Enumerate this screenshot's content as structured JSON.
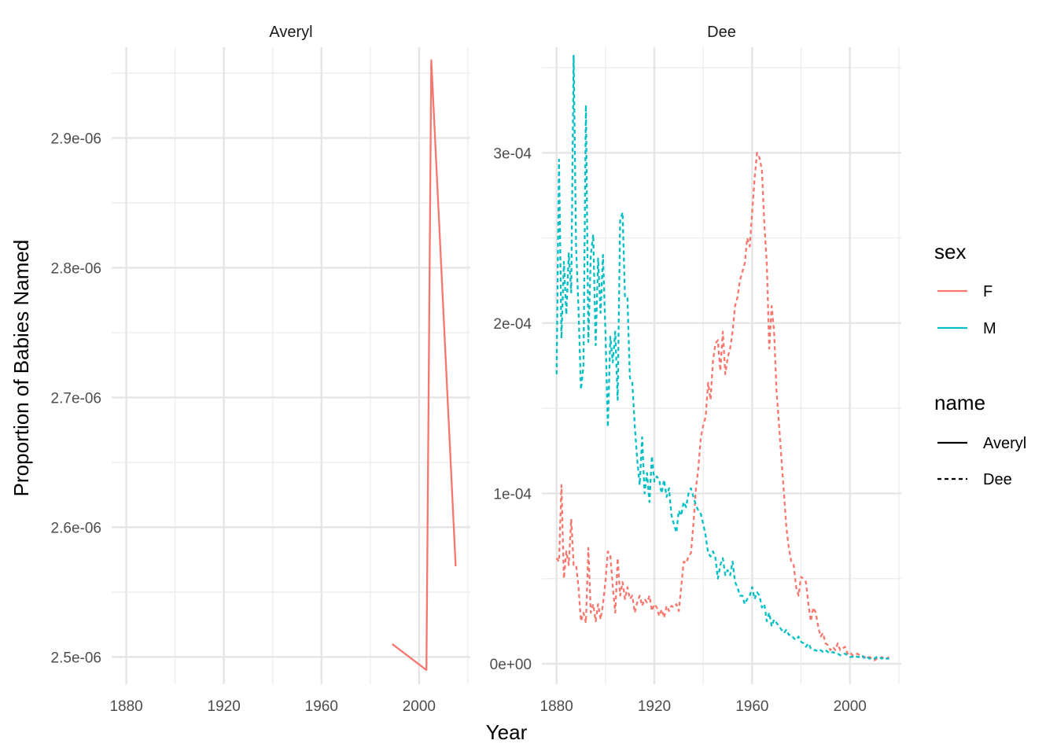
{
  "chart_data": {
    "type": "line",
    "xlabel": "Year",
    "ylabel": "Proportion of Babies Named",
    "colors": {
      "F": "#F8766D",
      "M": "#00BFC4"
    },
    "legend": {
      "position": "right",
      "sex": {
        "title": "sex",
        "items": [
          "F",
          "M"
        ]
      },
      "name": {
        "title": "name",
        "items": [
          "Averyl",
          "Dee"
        ],
        "linetypes": [
          "solid",
          "dashed"
        ]
      }
    },
    "panels": [
      {
        "strip": "Averyl",
        "xlim": [
          1874,
          2021
        ],
        "ylim": [
          2.479e-06,
          2.97e-06
        ],
        "x_ticks": [
          1880,
          1920,
          1960,
          2000
        ],
        "y_ticks": [
          {
            "value": 2.5e-06,
            "label": "2.5e-06"
          },
          {
            "value": 2.6e-06,
            "label": "2.6e-06"
          },
          {
            "value": 2.7e-06,
            "label": "2.7e-06"
          },
          {
            "value": 2.8e-06,
            "label": "2.8e-06"
          },
          {
            "value": 2.9e-06,
            "label": "2.9e-06"
          }
        ],
        "series": [
          {
            "sex": "F",
            "name": "Averyl",
            "linetype": "solid",
            "x": [
              1989,
              2003,
              2005,
              2015
            ],
            "y": [
              2.51e-06,
              2.49e-06,
              2.96e-06,
              2.57e-06
            ]
          }
        ]
      },
      {
        "strip": "Dee",
        "xlim": [
          1874,
          2021
        ],
        "ylim": [
          -1.2e-05,
          0.000362
        ],
        "x_ticks": [
          1880,
          1920,
          1960,
          2000
        ],
        "y_ticks": [
          {
            "value": 0,
            "label": "0e+00"
          },
          {
            "value": 0.0001,
            "label": "1e-04"
          },
          {
            "value": 0.0002,
            "label": "2e-04"
          },
          {
            "value": 0.0003,
            "label": "3e-04"
          }
        ],
        "series": [
          {
            "sex": "F",
            "name": "Dee",
            "linetype": "dashed",
            "x": [
              1880,
              1881,
              1882,
              1883,
              1884,
              1885,
              1886,
              1887,
              1888,
              1889,
              1890,
              1891,
              1892,
              1893,
              1894,
              1895,
              1896,
              1897,
              1898,
              1899,
              1900,
              1901,
              1902,
              1903,
              1904,
              1905,
              1906,
              1907,
              1908,
              1909,
              1910,
              1911,
              1912,
              1913,
              1914,
              1915,
              1916,
              1917,
              1918,
              1919,
              1920,
              1921,
              1922,
              1923,
              1924,
              1925,
              1926,
              1927,
              1928,
              1929,
              1930,
              1931,
              1932,
              1933,
              1934,
              1935,
              1936,
              1937,
              1938,
              1939,
              1940,
              1941,
              1942,
              1943,
              1944,
              1945,
              1946,
              1947,
              1948,
              1949,
              1950,
              1951,
              1952,
              1953,
              1954,
              1955,
              1956,
              1957,
              1958,
              1959,
              1960,
              1961,
              1962,
              1963,
              1964,
              1965,
              1966,
              1967,
              1968,
              1969,
              1970,
              1971,
              1972,
              1973,
              1974,
              1975,
              1976,
              1977,
              1978,
              1979,
              1980,
              1981,
              1982,
              1983,
              1984,
              1985,
              1986,
              1987,
              1988,
              1989,
              1990,
              1991,
              1992,
              1993,
              1994,
              1995,
              1996,
              1997,
              1998,
              1999,
              2000,
              2001,
              2002,
              2003,
              2004,
              2005,
              2006,
              2007,
              2008,
              2009,
              2010,
              2011,
              2012,
              2013,
              2014,
              2015,
              2016
            ],
            "y": [
              6.2e-05,
              6e-05,
              0.000105,
              5e-05,
              6.6e-05,
              5.8e-05,
              8.5e-05,
              5.8e-05,
              5.8e-05,
              4.5e-05,
              2.5e-05,
              3e-05,
              2.4e-05,
              6.8e-05,
              3e-05,
              3.5e-05,
              2.5e-05,
              3.5e-05,
              2.6e-05,
              3.5e-05,
              4.8e-05,
              6.6e-05,
              6.4e-05,
              4.5e-05,
              3e-05,
              6.2e-05,
              4e-05,
              4.8e-05,
              3.8e-05,
              4.5e-05,
              3.8e-05,
              4e-05,
              3e-05,
              3.6e-05,
              4e-05,
              3.4e-05,
              3.8e-05,
              3.6e-05,
              4e-05,
              3.1e-05,
              3.5e-05,
              3.3e-05,
              2.8e-05,
              3.2e-05,
              2.7e-05,
              3.4e-05,
              3.1e-05,
              3.4e-05,
              3.3e-05,
              3.5e-05,
              3.1e-05,
              4.5e-05,
              6e-05,
              5.9e-05,
              6.3e-05,
              6.5e-05,
              8.2e-05,
              0.000103,
              0.000115,
              0.000133,
              0.00014,
              0.000145,
              0.000165,
              0.000155,
              0.000178,
              0.000188,
              0.00019,
              0.000172,
              0.000195,
              0.00017,
              0.00018,
              0.000185,
              0.000195,
              0.00021,
              0.000215,
              0.000225,
              0.00023,
              0.000235,
              0.00025,
              0.000245,
              0.000265,
              0.000285,
              0.0003,
              0.000297,
              0.00029,
              0.000258,
              0.000235,
              0.000185,
              0.00021,
              0.000195,
              0.00016,
              0.00014,
              0.00012,
              0.0001,
              8e-05,
              6.8e-05,
              6e-05,
              5.8e-05,
              4.5e-05,
              4e-05,
              5.1e-05,
              5e-05,
              4.8e-05,
              3.5e-05,
              2.5e-05,
              3.3e-05,
              3e-05,
              2.2e-05,
              1.6e-05,
              1.8e-05,
              1.2e-05,
              1.1e-05,
              8e-06,
              1e-05,
              8e-06,
              1.2e-05,
              8e-06,
              9e-06,
              1e-05,
              6e-06,
              7e-06,
              5e-06,
              5e-06,
              6e-06,
              5e-06,
              4e-06,
              4e-06,
              3e-06,
              4e-06,
              3e-06,
              2e-06,
              3e-06,
              3e-06,
              4e-06,
              3e-06,
              3e-06,
              4e-06
            ]
          },
          {
            "sex": "M",
            "name": "Dee",
            "linetype": "dashed",
            "x": [
              1880,
              1881,
              1882,
              1883,
              1884,
              1885,
              1886,
              1887,
              1888,
              1889,
              1890,
              1891,
              1892,
              1893,
              1894,
              1895,
              1896,
              1897,
              1898,
              1899,
              1900,
              1901,
              1902,
              1903,
              1904,
              1905,
              1906,
              1907,
              1908,
              1909,
              1910,
              1911,
              1912,
              1913,
              1914,
              1915,
              1916,
              1917,
              1918,
              1919,
              1920,
              1921,
              1922,
              1923,
              1924,
              1925,
              1926,
              1927,
              1928,
              1929,
              1930,
              1931,
              1932,
              1933,
              1934,
              1935,
              1936,
              1937,
              1938,
              1939,
              1940,
              1941,
              1942,
              1943,
              1944,
              1945,
              1946,
              1947,
              1948,
              1949,
              1950,
              1951,
              1952,
              1953,
              1954,
              1955,
              1956,
              1957,
              1958,
              1959,
              1960,
              1961,
              1962,
              1963,
              1964,
              1965,
              1966,
              1967,
              1968,
              1969,
              1970,
              1971,
              1972,
              1973,
              1974,
              1975,
              1976,
              1977,
              1978,
              1979,
              1980,
              1981,
              1982,
              1983,
              1984,
              1985,
              1986,
              1987,
              1988,
              1989,
              1990,
              1991,
              1992,
              1993,
              1994,
              1995,
              1996,
              1997,
              1998,
              1999,
              2000,
              2001,
              2002,
              2003,
              2004,
              2005,
              2006,
              2007,
              2008,
              2009,
              2010,
              2011,
              2012,
              2013,
              2014,
              2015,
              2016
            ],
            "y": [
              0.00017,
              0.000296,
              0.000191,
              0.000236,
              0.000205,
              0.000241,
              0.000218,
              0.000357,
              0.000245,
              0.000208,
              0.000161,
              0.000175,
              0.000328,
              0.000189,
              0.00024,
              0.000252,
              0.000187,
              0.000238,
              0.000206,
              0.00024,
              0.000196,
              0.000139,
              0.000192,
              0.000177,
              0.000195,
              0.000155,
              0.00026,
              0.000265,
              0.000215,
              0.000215,
              0.000168,
              0.000165,
              0.00014,
              0.00012,
              0.000105,
              0.000133,
              0.0001,
              0.000112,
              9.5e-05,
              0.000122,
              0.000107,
              0.00011,
              0.000108,
              0.0001,
              0.000108,
              9.8e-05,
              0.000103,
              8.7e-05,
              8.2e-05,
              7.7e-05,
              9e-05,
              8.7e-05,
              9.5e-05,
              9.2e-05,
              0.0001,
              0.000103,
              9.8e-05,
              9.3e-05,
              9e-05,
              8.8e-05,
              8.2e-05,
              7.5e-05,
              6.5e-05,
              6.3e-05,
              6.6e-05,
              6.2e-05,
              5e-05,
              5.8e-05,
              6.2e-05,
              5.2e-05,
              5.5e-05,
              5.2e-05,
              6e-05,
              4.8e-05,
              4.5e-05,
              4e-05,
              4e-05,
              3.5e-05,
              3.8e-05,
              4e-05,
              4.5e-05,
              3.8e-05,
              4.2e-05,
              4e-05,
              3.3e-05,
              3.5e-05,
              2.5e-05,
              3e-05,
              2.2e-05,
              2.6e-05,
              2.4e-05,
              2.2e-05,
              2e-05,
              1.8e-05,
              2e-05,
              1.7e-05,
              1.7e-05,
              1.5e-05,
              1.4e-05,
              1.6e-05,
              1.3e-05,
              1.2e-05,
              1e-05,
              1.2e-05,
              9e-06,
              8e-06,
              8e-06,
              7e-06,
              8e-06,
              7e-06,
              8e-06,
              7e-06,
              6e-06,
              7e-06,
              6e-06,
              6e-06,
              5e-06,
              5e-06,
              6e-06,
              5e-06,
              4e-06,
              4e-06,
              5e-06,
              4e-06,
              4e-06,
              5e-06,
              3e-06,
              4e-06,
              3e-06,
              3e-06,
              3e-06,
              4e-06,
              4e-06,
              3e-06,
              4e-06,
              3e-06,
              3e-06
            ]
          }
        ]
      }
    ]
  }
}
